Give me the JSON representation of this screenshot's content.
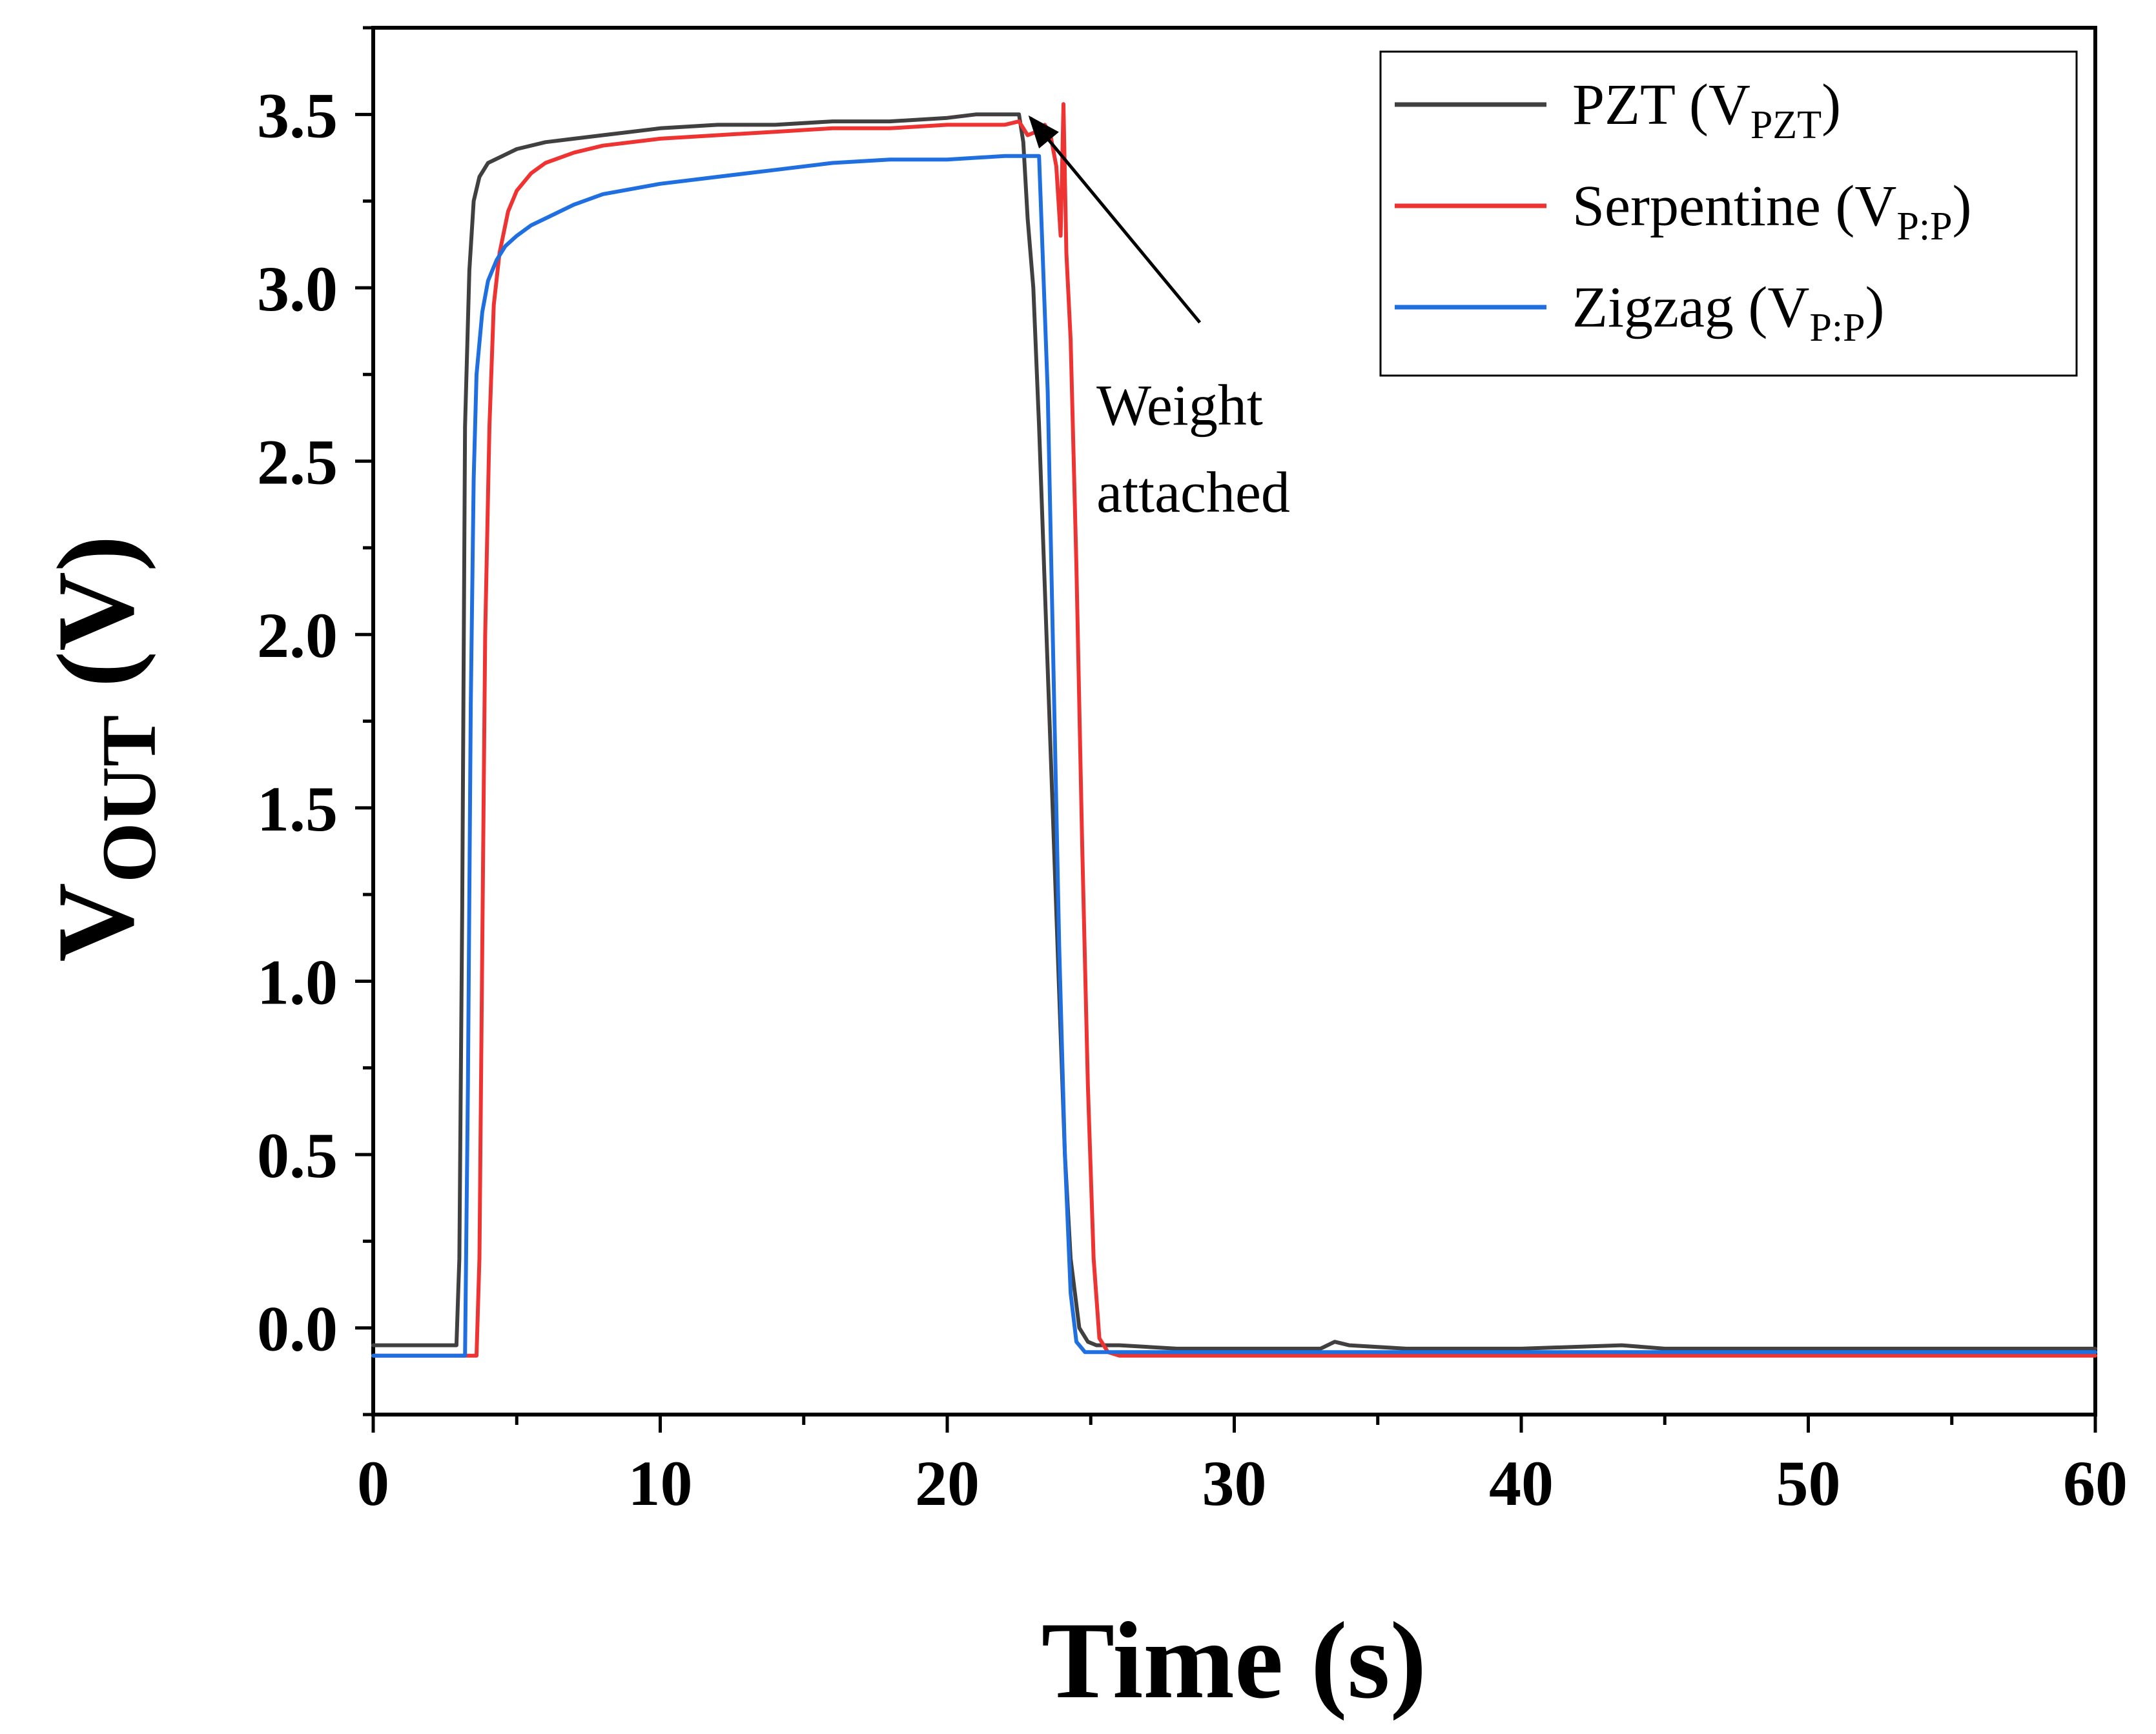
{
  "chart_data": {
    "type": "line",
    "title": "",
    "xlabel": "Time (s)",
    "ylabel": "V",
    "ylabel_sub": "OUT",
    "ylabel_unit": " (V)",
    "xlim": [
      0,
      60
    ],
    "ylim": [
      -0.25,
      3.75
    ],
    "xticks": [
      0,
      10,
      20,
      30,
      40,
      50,
      60
    ],
    "xtick_labels": [
      "0",
      "10",
      "20",
      "30",
      "40",
      "50",
      "60"
    ],
    "yticks": [
      0.0,
      0.5,
      1.0,
      1.5,
      2.0,
      2.5,
      3.0,
      3.5
    ],
    "ytick_labels": [
      "0.0",
      "0.5",
      "1.0",
      "1.5",
      "2.0",
      "2.5",
      "3.0",
      "3.5"
    ],
    "grid": false,
    "legend_position": "top-right",
    "series": [
      {
        "name": "PZT",
        "legend_main": "PZT (V",
        "legend_sub": "PZT",
        "legend_close": ")",
        "color": "#404040",
        "x": [
          0,
          1,
          2,
          2.9,
          3.0,
          3.1,
          3.2,
          3.35,
          3.5,
          3.7,
          4.0,
          4.5,
          5,
          6,
          7,
          8,
          10,
          12,
          14,
          16,
          18,
          20,
          21,
          22,
          22.5,
          22.65,
          22.8,
          23.0,
          23.2,
          23.5,
          23.8,
          24.1,
          24.3,
          24.6,
          24.9,
          25.2,
          25.5,
          26,
          28,
          30,
          33,
          33.5,
          34,
          36,
          40,
          43.5,
          45,
          50,
          55,
          60
        ],
        "y": [
          -0.05,
          -0.05,
          -0.05,
          -0.05,
          0.2,
          1.2,
          2.6,
          3.05,
          3.25,
          3.32,
          3.36,
          3.38,
          3.4,
          3.42,
          3.43,
          3.44,
          3.46,
          3.47,
          3.47,
          3.48,
          3.48,
          3.49,
          3.5,
          3.5,
          3.5,
          3.42,
          3.2,
          3.0,
          2.6,
          1.9,
          1.2,
          0.5,
          0.2,
          0.0,
          -0.04,
          -0.05,
          -0.05,
          -0.05,
          -0.06,
          -0.06,
          -0.06,
          -0.04,
          -0.05,
          -0.06,
          -0.06,
          -0.05,
          -0.06,
          -0.06,
          -0.06,
          -0.06
        ]
      },
      {
        "name": "Serpentine",
        "legend_main": "Serpentine (V",
        "legend_sub": "P:P",
        "legend_close": ")",
        "color": "#ee3333",
        "x": [
          0,
          1,
          2,
          3,
          3.6,
          3.7,
          3.8,
          3.9,
          4.05,
          4.2,
          4.4,
          4.7,
          5,
          5.5,
          6,
          7,
          8,
          10,
          12,
          14,
          16,
          18,
          20,
          22,
          22.5,
          22.8,
          23.1,
          23.4,
          23.6,
          23.8,
          23.95,
          24.05,
          24.15,
          24.3,
          24.5,
          24.7,
          24.9,
          25.1,
          25.3,
          25.6,
          26,
          28,
          30,
          35,
          40,
          45,
          50,
          55,
          60
        ],
        "y": [
          -0.08,
          -0.08,
          -0.08,
          -0.08,
          -0.08,
          0.2,
          1.1,
          2.0,
          2.6,
          2.95,
          3.1,
          3.22,
          3.28,
          3.33,
          3.36,
          3.39,
          3.41,
          3.43,
          3.44,
          3.45,
          3.46,
          3.46,
          3.47,
          3.47,
          3.48,
          3.44,
          3.45,
          3.47,
          3.44,
          3.35,
          3.15,
          3.53,
          3.1,
          2.85,
          2.2,
          1.4,
          0.7,
          0.2,
          -0.03,
          -0.07,
          -0.08,
          -0.08,
          -0.08,
          -0.08,
          -0.08,
          -0.08,
          -0.08,
          -0.08,
          -0.08
        ]
      },
      {
        "name": "Zigzag",
        "legend_main": "Zigzag (V",
        "legend_sub": "P:P",
        "legend_close": ")",
        "color": "#1f6fe0",
        "x": [
          0,
          1,
          2,
          3.0,
          3.2,
          3.3,
          3.4,
          3.5,
          3.6,
          3.8,
          4.0,
          4.3,
          4.6,
          5,
          5.5,
          6,
          7,
          8,
          10,
          12,
          14,
          16,
          18,
          20,
          22,
          23.0,
          23.2,
          23.5,
          23.7,
          23.9,
          24.1,
          24.3,
          24.5,
          24.8,
          25.5,
          27,
          30,
          35,
          40,
          45,
          50,
          55,
          60
        ],
        "y": [
          -0.08,
          -0.08,
          -0.08,
          -0.08,
          -0.08,
          0.7,
          1.8,
          2.45,
          2.75,
          2.93,
          3.02,
          3.08,
          3.12,
          3.15,
          3.18,
          3.2,
          3.24,
          3.27,
          3.3,
          3.32,
          3.34,
          3.36,
          3.37,
          3.37,
          3.38,
          3.38,
          3.38,
          2.7,
          1.9,
          1.1,
          0.5,
          0.1,
          -0.04,
          -0.07,
          -0.07,
          -0.07,
          -0.07,
          -0.07,
          -0.07,
          -0.07,
          -0.07,
          -0.07,
          -0.07
        ]
      }
    ],
    "annotation": {
      "lines": [
        "Weight",
        "attached"
      ],
      "arrow_tip": [
        22.9,
        3.49
      ],
      "arrow_tail": [
        28.8,
        2.9
      ],
      "text_anchor": [
        25.2,
        2.68
      ]
    }
  }
}
